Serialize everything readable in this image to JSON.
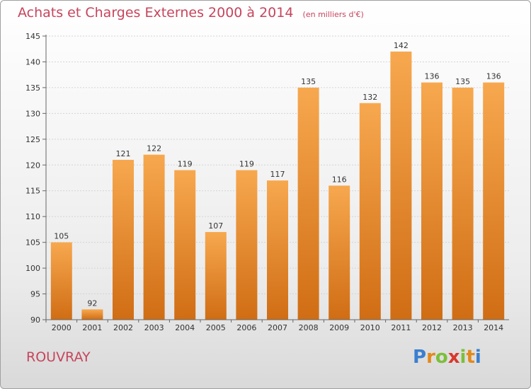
{
  "header": {
    "title": "Achats et Charges Externes 2000 à 2014",
    "subtitle": "(en milliers d'€)"
  },
  "footer": {
    "commune": "ROUVRAY",
    "logo_letters": [
      "P",
      "r",
      "o",
      "x",
      "i",
      "t",
      "i"
    ],
    "logo_colors": [
      "#3a7fd0",
      "#e2891b",
      "#7cbf3a",
      "#d8392b",
      "#7cbf3a",
      "#e2891b",
      "#3a7fd0"
    ]
  },
  "colors": {
    "bar_top": "#f7a84f",
    "bar_bottom": "#d06d14",
    "title": "#c6455c"
  },
  "chart_data": {
    "type": "bar",
    "title": "Achats et Charges Externes 2000 à 2014",
    "categories": [
      "2000",
      "2001",
      "2002",
      "2003",
      "2004",
      "2005",
      "2006",
      "2007",
      "2008",
      "2009",
      "2010",
      "2011",
      "2012",
      "2013",
      "2014"
    ],
    "values": [
      105,
      92,
      121,
      122,
      119,
      107,
      119,
      117,
      135,
      116,
      132,
      142,
      136,
      135,
      136
    ],
    "ylim": [
      90,
      145
    ],
    "yticks": [
      90,
      95,
      100,
      105,
      110,
      115,
      120,
      125,
      130,
      135,
      140,
      145
    ],
    "grid": true
  }
}
